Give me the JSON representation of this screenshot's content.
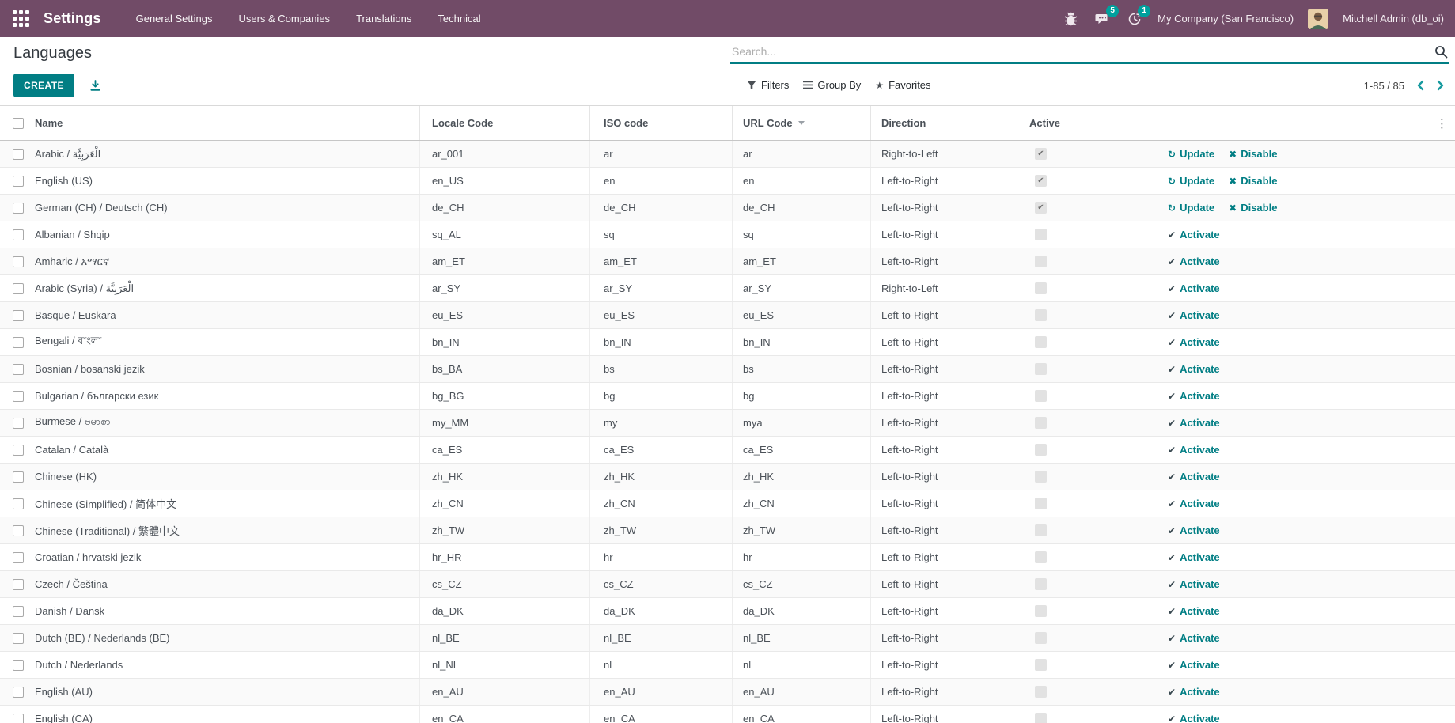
{
  "colors": {
    "topbar_bg": "#714B67",
    "accent": "#017e84",
    "badge": "#00A09D"
  },
  "topbar": {
    "app_title": "Settings",
    "menu": [
      "General Settings",
      "Users & Companies",
      "Translations",
      "Technical"
    ],
    "messages_badge": "5",
    "activities_badge": "1",
    "company": "My Company (San Francisco)",
    "user": "Mitchell Admin (db_oi)"
  },
  "page": {
    "title": "Languages",
    "create_label": "CREATE",
    "search_placeholder": "Search...",
    "filters_label": "Filters",
    "group_by_label": "Group By",
    "favorites_label": "Favorites",
    "pager": "1-85 / 85"
  },
  "table": {
    "columns": [
      "Name",
      "Locale Code",
      "ISO code",
      "URL Code",
      "Direction",
      "Active"
    ],
    "action_labels": {
      "update": "Update",
      "disable": "Disable",
      "activate": "Activate"
    },
    "rows": [
      {
        "name": "Arabic / الْعَرَبِيَّة",
        "locale": "ar_001",
        "iso": "ar",
        "url": "ar",
        "direction": "Right-to-Left",
        "active": true
      },
      {
        "name": "English (US)",
        "locale": "en_US",
        "iso": "en",
        "url": "en",
        "direction": "Left-to-Right",
        "active": true
      },
      {
        "name": "German (CH) / Deutsch (CH)",
        "locale": "de_CH",
        "iso": "de_CH",
        "url": "de_CH",
        "direction": "Left-to-Right",
        "active": true
      },
      {
        "name": "Albanian / Shqip",
        "locale": "sq_AL",
        "iso": "sq",
        "url": "sq",
        "direction": "Left-to-Right",
        "active": false
      },
      {
        "name": "Amharic / አማርኛ",
        "locale": "am_ET",
        "iso": "am_ET",
        "url": "am_ET",
        "direction": "Left-to-Right",
        "active": false
      },
      {
        "name": "Arabic (Syria) / الْعَرَبِيَّة",
        "locale": "ar_SY",
        "iso": "ar_SY",
        "url": "ar_SY",
        "direction": "Right-to-Left",
        "active": false
      },
      {
        "name": "Basque / Euskara",
        "locale": "eu_ES",
        "iso": "eu_ES",
        "url": "eu_ES",
        "direction": "Left-to-Right",
        "active": false
      },
      {
        "name": "Bengali / বাংলা",
        "locale": "bn_IN",
        "iso": "bn_IN",
        "url": "bn_IN",
        "direction": "Left-to-Right",
        "active": false
      },
      {
        "name": "Bosnian / bosanski jezik",
        "locale": "bs_BA",
        "iso": "bs",
        "url": "bs",
        "direction": "Left-to-Right",
        "active": false
      },
      {
        "name": "Bulgarian / български език",
        "locale": "bg_BG",
        "iso": "bg",
        "url": "bg",
        "direction": "Left-to-Right",
        "active": false
      },
      {
        "name": "Burmese / ဗမာစာ",
        "locale": "my_MM",
        "iso": "my",
        "url": "mya",
        "direction": "Left-to-Right",
        "active": false
      },
      {
        "name": "Catalan / Català",
        "locale": "ca_ES",
        "iso": "ca_ES",
        "url": "ca_ES",
        "direction": "Left-to-Right",
        "active": false
      },
      {
        "name": "Chinese (HK)",
        "locale": "zh_HK",
        "iso": "zh_HK",
        "url": "zh_HK",
        "direction": "Left-to-Right",
        "active": false
      },
      {
        "name": "Chinese (Simplified) / 简体中文",
        "locale": "zh_CN",
        "iso": "zh_CN",
        "url": "zh_CN",
        "direction": "Left-to-Right",
        "active": false
      },
      {
        "name": "Chinese (Traditional) / 繁體中文",
        "locale": "zh_TW",
        "iso": "zh_TW",
        "url": "zh_TW",
        "direction": "Left-to-Right",
        "active": false
      },
      {
        "name": "Croatian / hrvatski jezik",
        "locale": "hr_HR",
        "iso": "hr",
        "url": "hr",
        "direction": "Left-to-Right",
        "active": false
      },
      {
        "name": "Czech / Čeština",
        "locale": "cs_CZ",
        "iso": "cs_CZ",
        "url": "cs_CZ",
        "direction": "Left-to-Right",
        "active": false
      },
      {
        "name": "Danish / Dansk",
        "locale": "da_DK",
        "iso": "da_DK",
        "url": "da_DK",
        "direction": "Left-to-Right",
        "active": false
      },
      {
        "name": "Dutch (BE) / Nederlands (BE)",
        "locale": "nl_BE",
        "iso": "nl_BE",
        "url": "nl_BE",
        "direction": "Left-to-Right",
        "active": false
      },
      {
        "name": "Dutch / Nederlands",
        "locale": "nl_NL",
        "iso": "nl",
        "url": "nl",
        "direction": "Left-to-Right",
        "active": false
      },
      {
        "name": "English (AU)",
        "locale": "en_AU",
        "iso": "en_AU",
        "url": "en_AU",
        "direction": "Left-to-Right",
        "active": false
      },
      {
        "name": "English (CA)",
        "locale": "en_CA",
        "iso": "en_CA",
        "url": "en_CA",
        "direction": "Left-to-Right",
        "active": false
      }
    ]
  }
}
